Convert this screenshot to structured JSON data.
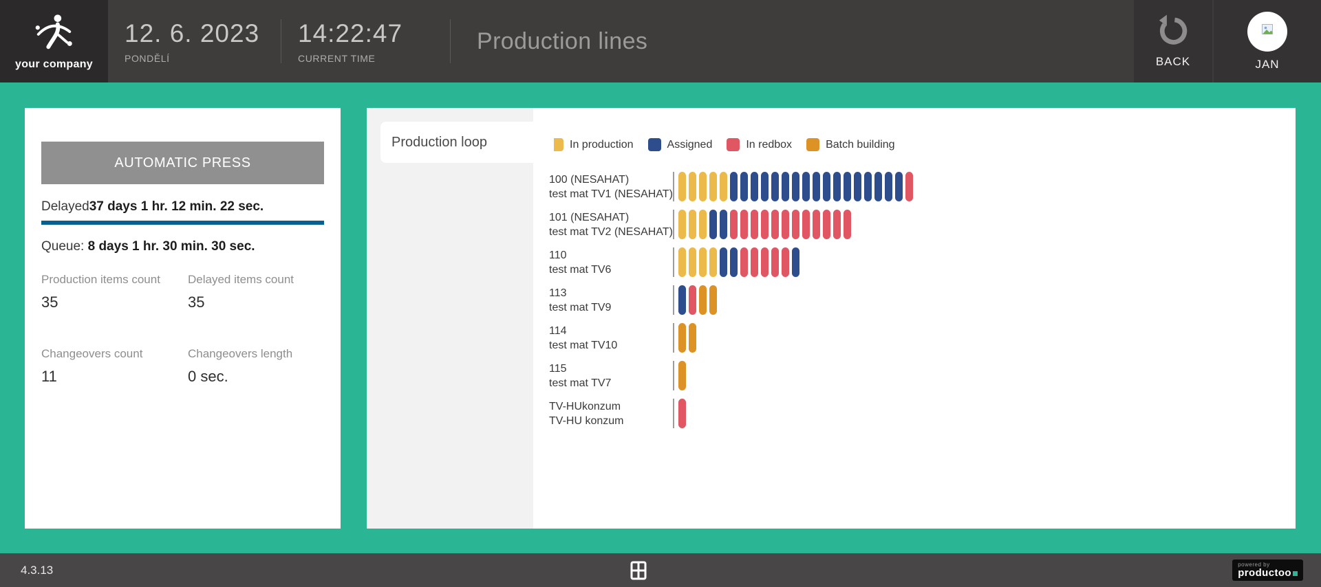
{
  "header": {
    "company": "your company",
    "date": "12. 6. 2023",
    "day": "PONDĚLÍ",
    "time": "14:22:47",
    "time_label": "CURRENT TIME",
    "title": "Production lines",
    "back_label": "BACK",
    "user": "JAN"
  },
  "icons": {
    "company_logo": "abstract-figure-mark",
    "back": "undo-circular-arrow",
    "avatar": "image-placeholder",
    "footer_center": "grid-window"
  },
  "machine_panel": {
    "name": "AUTOMATIC PRESS",
    "delayed_label": "Delayed",
    "delayed_value": "37 days 1 hr. 12 min. 22 sec.",
    "queue_label": "Queue: ",
    "queue_value": "8 days 1 hr. 30 min. 30 sec.",
    "stats": [
      {
        "label": "Production items count",
        "value": "35"
      },
      {
        "label": "Delayed items count",
        "value": "35"
      },
      {
        "label": "Changeovers count",
        "value": "11"
      },
      {
        "label": "Changeovers length",
        "value": "0 sec."
      }
    ]
  },
  "production_panel": {
    "tab": "Production loop"
  },
  "chart_data": {
    "type": "bar",
    "variant": "unit-pill-stacked-horizontal",
    "title": "Production loop",
    "legend_position": "top",
    "unit": "production items",
    "statuses": {
      "in_production": {
        "label": "In production",
        "color": "#ecb94b"
      },
      "assigned": {
        "label": "Assigned",
        "color": "#2d4d8c"
      },
      "in_redbox": {
        "label": "In redbox",
        "color": "#e05663"
      },
      "batch_building": {
        "label": "Batch building",
        "color": "#dd9226"
      }
    },
    "legend_order": [
      "in_production",
      "assigned",
      "in_redbox",
      "batch_building"
    ],
    "rows": [
      {
        "code": "100 (NESAHAT)",
        "material": "test mat TV1 (NESAHAT)",
        "segments": [
          [
            "in_production",
            5
          ],
          [
            "assigned",
            17
          ],
          [
            "in_redbox",
            1
          ]
        ]
      },
      {
        "code": "101 (NESAHAT)",
        "material": "test mat TV2 (NESAHAT)",
        "segments": [
          [
            "in_production",
            3
          ],
          [
            "assigned",
            2
          ],
          [
            "in_redbox",
            12
          ]
        ]
      },
      {
        "code": "110",
        "material": "test mat TV6",
        "segments": [
          [
            "in_production",
            4
          ],
          [
            "assigned",
            2
          ],
          [
            "in_redbox",
            5
          ],
          [
            "assigned",
            1
          ]
        ]
      },
      {
        "code": "113",
        "material": "test mat TV9",
        "segments": [
          [
            "assigned",
            1
          ],
          [
            "in_redbox",
            1
          ],
          [
            "batch_building",
            2
          ]
        ]
      },
      {
        "code": "114",
        "material": "test mat TV10",
        "segments": [
          [
            "batch_building",
            2
          ]
        ]
      },
      {
        "code": "115",
        "material": "test mat TV7",
        "segments": [
          [
            "batch_building",
            1
          ]
        ]
      },
      {
        "code": "TV-HUkonzum",
        "material": "TV-HU konzum",
        "segments": [
          [
            "in_redbox",
            1
          ]
        ]
      }
    ]
  },
  "footer": {
    "version": "4.3.13",
    "powered_by": "powered by",
    "brand": "productoo"
  },
  "colors": {
    "accent_teal": "#2ab594",
    "delay_divider": "#07608f",
    "press_button": "#909090"
  }
}
